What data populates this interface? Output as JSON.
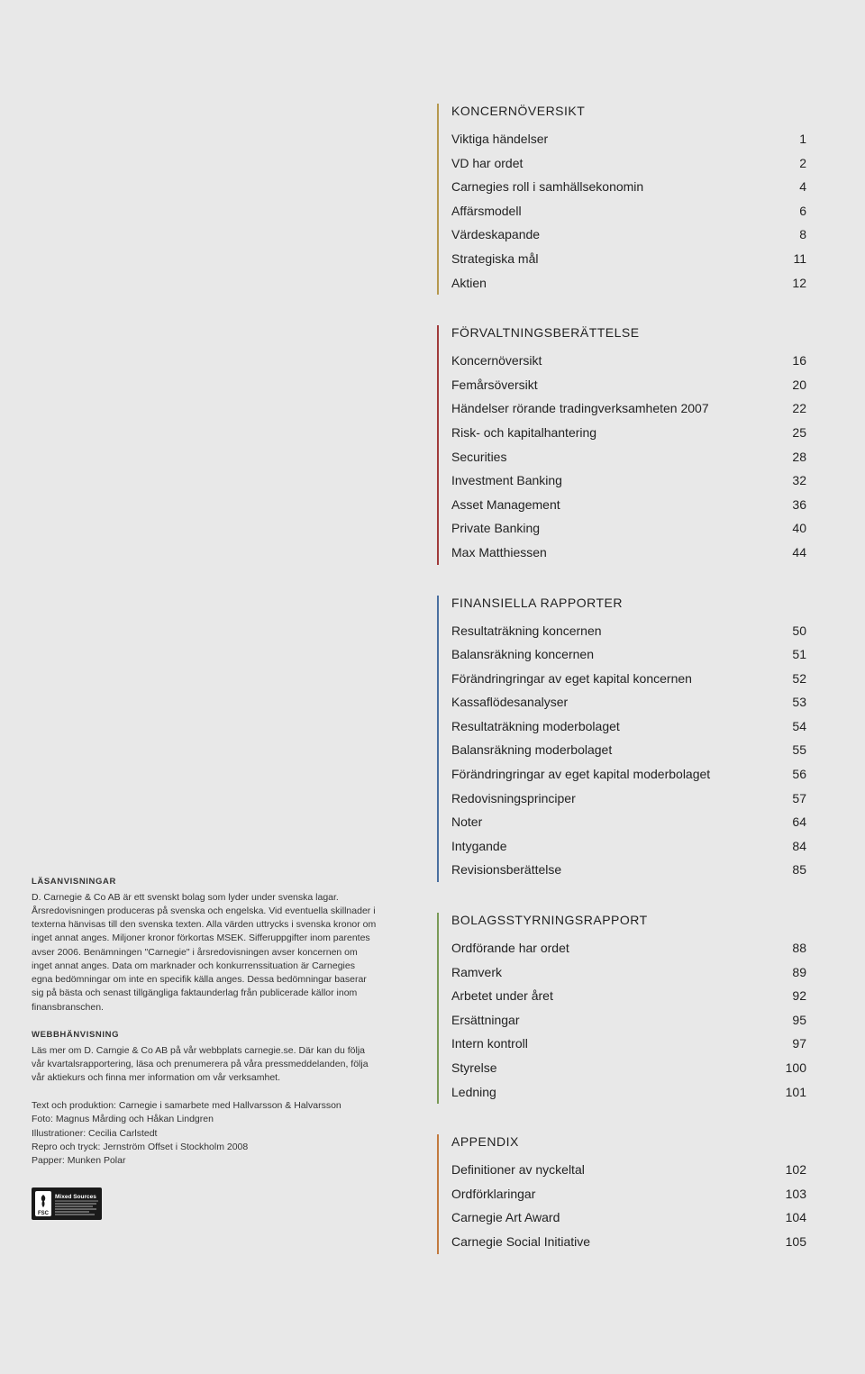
{
  "colors": {
    "page_bg": "#e8e8e8",
    "text": "#222222",
    "fine_text": "#333333",
    "koncern_border": "#b5984e",
    "forvalt_border": "#a03a3a",
    "finans_border": "#4a6fa0",
    "bolag_border": "#7a9a57",
    "appendix_border": "#c27a3e",
    "fsc_bg": "#1a1a1a",
    "fsc_fg": "#ffffff"
  },
  "typography": {
    "heading_font": "Gill Sans",
    "body_font": "Gill Sans",
    "heading_size_pt": 11,
    "toc_size_pt": 11,
    "fine_size_pt": 8
  },
  "sections": {
    "koncern": {
      "heading": "KONCERNÖVERSIKT",
      "items": [
        {
          "label": "Viktiga händelser",
          "page": "1"
        },
        {
          "label": "VD har ordet",
          "page": "2"
        },
        {
          "label": "Carnegies roll i samhällsekonomin",
          "page": "4"
        },
        {
          "label": "Affärsmodell",
          "page": "6"
        },
        {
          "label": "Värdeskapande",
          "page": "8"
        },
        {
          "label": "Strategiska mål",
          "page": "11"
        },
        {
          "label": "Aktien",
          "page": "12"
        }
      ]
    },
    "forvalt": {
      "heading": "FÖRVALTNINGSBERÄTTELSE",
      "items": [
        {
          "label": "Koncernöversikt",
          "page": "16"
        },
        {
          "label": "Femårsöversikt",
          "page": "20"
        },
        {
          "label": "Händelser rörande tradingverksamheten 2007",
          "page": "22"
        },
        {
          "label": "Risk- och kapitalhantering",
          "page": "25"
        },
        {
          "label": "Securities",
          "page": "28"
        },
        {
          "label": "Investment Banking",
          "page": "32"
        },
        {
          "label": "Asset Management",
          "page": "36"
        },
        {
          "label": "Private Banking",
          "page": "40"
        },
        {
          "label": "Max Matthiessen",
          "page": "44"
        }
      ]
    },
    "finans": {
      "heading": "FINANSIELLA RAPPORTER",
      "items": [
        {
          "label": "Resultaträkning koncernen",
          "page": "50"
        },
        {
          "label": "Balansräkning koncernen",
          "page": "51"
        },
        {
          "label": "Förändringringar av eget kapital koncernen",
          "page": "52"
        },
        {
          "label": "Kassaflödesanalyser",
          "page": "53"
        },
        {
          "label": "Resultaträkning moderbolaget",
          "page": "54"
        },
        {
          "label": "Balansräkning moderbolaget",
          "page": "55"
        },
        {
          "label": "Förändringringar av eget kapital moderbolaget",
          "page": "56"
        },
        {
          "label": "Redovisningsprinciper",
          "page": "57"
        },
        {
          "label": "Noter",
          "page": "64"
        },
        {
          "label": "Intygande",
          "page": "84"
        },
        {
          "label": "Revisionsberättelse",
          "page": "85"
        }
      ]
    },
    "bolag": {
      "heading": "BOLAGSSTYRNINGSRAPPORT",
      "items": [
        {
          "label": "Ordförande har ordet",
          "page": "88"
        },
        {
          "label": "Ramverk",
          "page": "89"
        },
        {
          "label": "Arbetet under året",
          "page": "92"
        },
        {
          "label": "Ersättningar",
          "page": "95"
        },
        {
          "label": "Intern kontroll",
          "page": "97"
        },
        {
          "label": "Styrelse",
          "page": "100"
        },
        {
          "label": "Ledning",
          "page": "101"
        }
      ]
    },
    "appendix": {
      "heading": "APPENDIX",
      "items": [
        {
          "label": "Definitioner av nyckeltal",
          "page": "102"
        },
        {
          "label": "Ordförklaringar",
          "page": "103"
        },
        {
          "label": "Carnegie Art Award",
          "page": "104"
        },
        {
          "label": "Carnegie Social Initiative",
          "page": "105"
        }
      ]
    }
  },
  "fineprint": {
    "lasan_heading": "LÄSANVISNINGAR",
    "lasan_body": "D. Carnegie & Co AB är ett svenskt bolag som lyder under svenska lagar. Årsredovisningen produceras på svenska och engelska. Vid eventuella skillnader i texterna hänvisas till den svenska texten. Alla värden uttrycks i svenska kronor om inget annat anges. Miljoner kronor förkortas MSEK. Sifferuppgifter inom parentes avser 2006. Benämningen \"Carnegie\" i årsredovisningen avser koncernen om inget annat anges. Data om marknader och konkurrenssituation är Carnegies egna bedömningar om inte en specifik källa anges. Dessa bedömningar baserar sig på bästa och senast tillgängliga faktaunderlag från publicerade källor inom finansbranschen.",
    "webb_heading": "WEBBHÄNVISNING",
    "webb_body": "Läs mer om D. Carngie & Co AB på vår webbplats carnegie.se. Där kan du följa vår kvartalsrapportering, läsa och prenumerera på våra pressmeddelanden, följa vår aktiekurs och finna mer information om vår verksamhet.",
    "colophon": "Text och produktion: Carnegie i samarbete med Hallvarsson & Halvarsson\nFoto: Magnus Mårding och Håkan Lindgren\nIllustrationer: Cecilia Carlstedt\nRepro och tryck: Jernström Offset i Stockholm 2008\nPapper: Munken Polar",
    "fsc_label": "Mixed Sources",
    "fsc_org": "FSC"
  }
}
